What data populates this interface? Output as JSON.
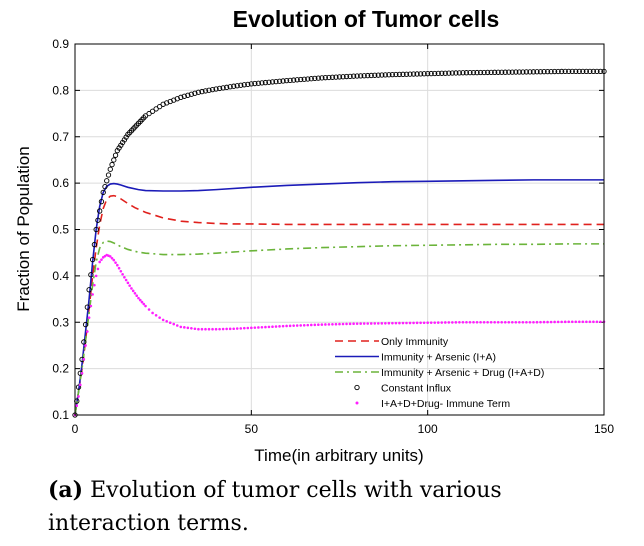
{
  "chart_data": {
    "type": "line",
    "title": "Evolution of Tumor cells",
    "xlabel": "Time(in arbitrary units)",
    "ylabel": "Fraction of Population",
    "xlim": [
      0,
      150
    ],
    "ylim": [
      0.1,
      0.9
    ],
    "xticks": [
      0,
      50,
      100,
      150
    ],
    "yticks": [
      0.1,
      0.2,
      0.3,
      0.4,
      0.5,
      0.6,
      0.7,
      0.8,
      0.9
    ],
    "grid": true,
    "legend_position": "bottom-right",
    "series": [
      {
        "name": "Only Immunity",
        "style": "dashed",
        "color": "#e0211d",
        "x": [
          0,
          1,
          2,
          3,
          4,
          5,
          6,
          7,
          8,
          9,
          10,
          11,
          12,
          13,
          15,
          17,
          20,
          25,
          30,
          35,
          40,
          45,
          50,
          60,
          70,
          80,
          90,
          100,
          110,
          120,
          130,
          140,
          150
        ],
        "y": [
          0.1,
          0.15,
          0.2,
          0.26,
          0.33,
          0.4,
          0.46,
          0.51,
          0.545,
          0.565,
          0.572,
          0.573,
          0.571,
          0.566,
          0.556,
          0.547,
          0.537,
          0.525,
          0.518,
          0.515,
          0.513,
          0.512,
          0.512,
          0.511,
          0.511,
          0.511,
          0.511,
          0.511,
          0.511,
          0.511,
          0.511,
          0.511,
          0.511
        ]
      },
      {
        "name": "Immunity + Arsenic (I+A)",
        "style": "solid",
        "color": "#1b1bb8",
        "x": [
          0,
          1,
          2,
          3,
          4,
          5,
          6,
          7,
          8,
          9,
          10,
          11,
          12,
          13,
          15,
          18,
          20,
          25,
          30,
          35,
          40,
          50,
          60,
          70,
          80,
          90,
          100,
          110,
          120,
          130,
          140,
          150
        ],
        "y": [
          0.1,
          0.15,
          0.21,
          0.28,
          0.35,
          0.43,
          0.5,
          0.55,
          0.58,
          0.593,
          0.598,
          0.599,
          0.598,
          0.596,
          0.591,
          0.586,
          0.584,
          0.583,
          0.583,
          0.584,
          0.586,
          0.591,
          0.595,
          0.598,
          0.601,
          0.603,
          0.604,
          0.605,
          0.606,
          0.607,
          0.607,
          0.607
        ]
      },
      {
        "name": "Immunity + Arsenic + Drug (I+A+D)",
        "style": "dashdot",
        "color": "#6bb43a",
        "x": [
          0,
          1,
          2,
          3,
          4,
          5,
          6,
          7,
          8,
          9,
          10,
          11,
          12,
          13,
          15,
          18,
          20,
          25,
          30,
          35,
          40,
          50,
          60,
          70,
          80,
          90,
          100,
          110,
          120,
          130,
          140,
          150
        ],
        "y": [
          0.1,
          0.15,
          0.2,
          0.26,
          0.32,
          0.38,
          0.43,
          0.46,
          0.472,
          0.475,
          0.474,
          0.471,
          0.467,
          0.463,
          0.457,
          0.451,
          0.449,
          0.446,
          0.446,
          0.447,
          0.449,
          0.454,
          0.458,
          0.461,
          0.463,
          0.465,
          0.466,
          0.467,
          0.468,
          0.468,
          0.469,
          0.469
        ]
      },
      {
        "name": "Constant Influx",
        "style": "circles",
        "color": "#000000",
        "x": [
          0,
          2,
          4,
          6,
          8,
          10,
          12,
          15,
          20,
          25,
          30,
          35,
          40,
          45,
          50,
          60,
          70,
          80,
          90,
          100,
          110,
          120,
          130,
          140,
          150
        ],
        "y": [
          0.1,
          0.22,
          0.37,
          0.5,
          0.58,
          0.63,
          0.67,
          0.705,
          0.745,
          0.77,
          0.785,
          0.796,
          0.803,
          0.809,
          0.814,
          0.821,
          0.827,
          0.831,
          0.834,
          0.836,
          0.838,
          0.839,
          0.84,
          0.841,
          0.841
        ]
      },
      {
        "name": "I+A+D+Drug- Immune Term",
        "style": "dots",
        "color": "#ff1fff",
        "x": [
          0,
          1,
          2,
          3,
          4,
          5,
          6,
          7,
          8,
          9,
          10,
          11,
          12,
          13,
          14,
          16,
          18,
          20,
          22,
          25,
          30,
          35,
          40,
          45,
          50,
          60,
          70,
          80,
          90,
          100,
          110,
          120,
          130,
          140,
          150
        ],
        "y": [
          0.1,
          0.14,
          0.19,
          0.25,
          0.31,
          0.36,
          0.4,
          0.43,
          0.44,
          0.445,
          0.442,
          0.434,
          0.423,
          0.41,
          0.397,
          0.373,
          0.352,
          0.335,
          0.32,
          0.305,
          0.29,
          0.285,
          0.285,
          0.286,
          0.288,
          0.292,
          0.295,
          0.297,
          0.298,
          0.299,
          0.3,
          0.3,
          0.3,
          0.301,
          0.301
        ]
      }
    ]
  },
  "caption": {
    "label": "(a)",
    "text": "Evolution of tumor cells with various interaction terms."
  }
}
